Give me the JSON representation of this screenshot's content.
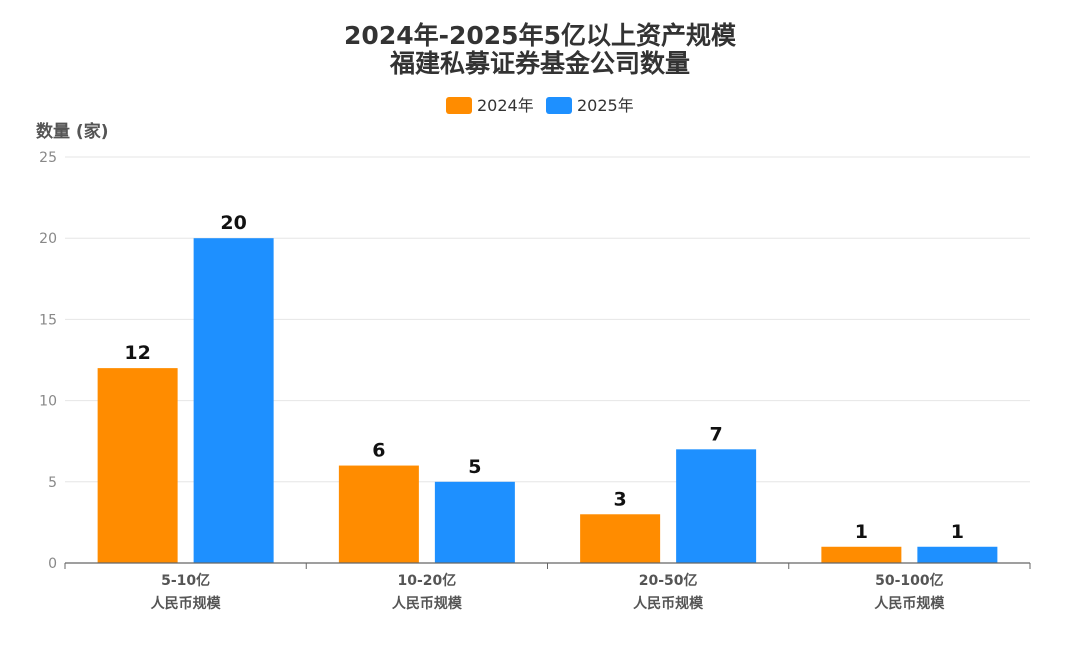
{
  "chart_data": {
    "type": "bar",
    "title_lines": [
      "2024年-2025年5亿以上资产规模",
      "福建私募证券基金公司数量"
    ],
    "ylabel": "数量 (家)",
    "xlabel": "",
    "ylim": [
      0,
      25
    ],
    "yticks": [
      0,
      5,
      10,
      15,
      20,
      25
    ],
    "grid": true,
    "legend_position": "top-center",
    "categories": [
      {
        "line1": "5-10亿",
        "line2": "人民币规模"
      },
      {
        "line1": "10-20亿",
        "line2": "人民币规模"
      },
      {
        "line1": "20-50亿",
        "line2": "人民币规模"
      },
      {
        "line1": "50-100亿",
        "line2": "人民币规模"
      }
    ],
    "series": [
      {
        "name": "2024年",
        "color": "#FF8C00",
        "values": [
          12,
          6,
          3,
          1
        ]
      },
      {
        "name": "2025年",
        "color": "#1E90FF",
        "values": [
          20,
          5,
          7,
          1
        ]
      }
    ]
  }
}
